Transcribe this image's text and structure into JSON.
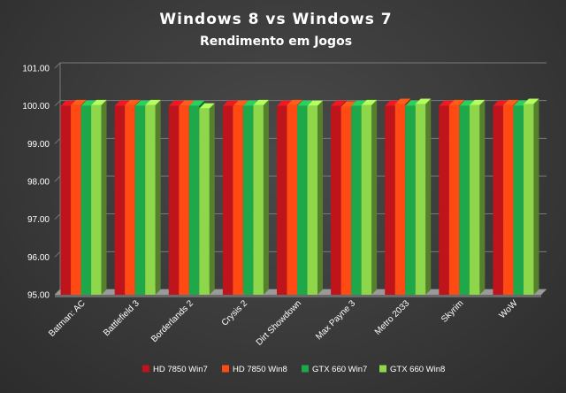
{
  "chart_data": {
    "type": "bar",
    "title": "Windows 8 vs Windows 7",
    "subtitle": "Rendimento em Jogos",
    "xlabel": "",
    "ylabel": "",
    "ylim": [
      95,
      101
    ],
    "yticks": [
      "101.00",
      "100.00",
      "99.00",
      "98.00",
      "97.00",
      "96.00",
      "95.00"
    ],
    "grid": true,
    "legend_position": "bottom",
    "categories": [
      "Batman: AC",
      "Battlefield 3",
      "Borderlands 2",
      "Crysis 2",
      "Dirt Showdown",
      "Max Payne 3",
      "Metro 2033",
      "Skyrim",
      "WoW"
    ],
    "series": [
      {
        "name": "HD 7850 Win7",
        "color": "#c0141c",
        "values": [
          100,
          100,
          100,
          100,
          100,
          100,
          100,
          100,
          100
        ]
      },
      {
        "name": "HD 7850 Win8",
        "color": "#ff4a14",
        "values": [
          100.02,
          100.02,
          100,
          100,
          100.02,
          99.98,
          100.05,
          100.02,
          100.02
        ]
      },
      {
        "name": "GTX 660 Win7",
        "color": "#1fa84a",
        "values": [
          100,
          100,
          100,
          100,
          100,
          100,
          100,
          100,
          100
        ]
      },
      {
        "name": "GTX 660 Win8",
        "color": "#8ed64a",
        "values": [
          100.02,
          100.02,
          99.93,
          100.02,
          100,
          100.02,
          100.05,
          100.02,
          100.05
        ]
      }
    ]
  }
}
